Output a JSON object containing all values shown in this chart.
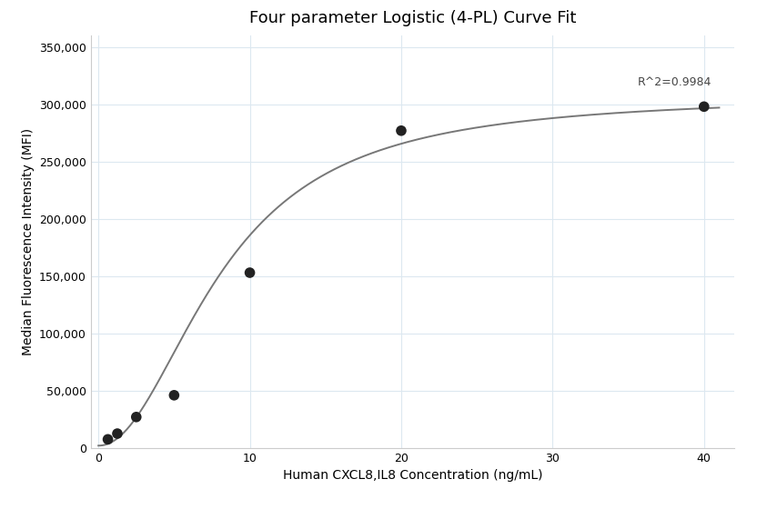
{
  "title": "Four parameter Logistic (4-PL) Curve Fit",
  "xlabel": "Human CXCL8,IL8 Concentration (ng/mL)",
  "ylabel": "Median Fluorescence Intensity (MFI)",
  "data_x": [
    0.625,
    1.25,
    2.5,
    5.0,
    10.0,
    20.0,
    40.0
  ],
  "data_y": [
    7500,
    12500,
    27000,
    46000,
    153000,
    277000,
    298000
  ],
  "xlim": [
    -0.5,
    42
  ],
  "ylim": [
    0,
    360000
  ],
  "yticks": [
    0,
    50000,
    100000,
    150000,
    200000,
    250000,
    300000,
    350000
  ],
  "xticks": [
    0,
    10,
    20,
    30,
    40
  ],
  "r_squared": "R^2=0.9984",
  "r2_x": 40.5,
  "r2_y": 314000,
  "dot_color": "#222222",
  "dot_size": 70,
  "curve_color": "#777777",
  "curve_linewidth": 1.4,
  "bg_color": "#ffffff",
  "grid_color": "#dce8f0",
  "title_fontsize": 13,
  "label_fontsize": 10,
  "tick_fontsize": 9,
  "4pl_A": 2000,
  "4pl_B": 2.05,
  "4pl_C": 8.2,
  "4pl_D": 308000
}
